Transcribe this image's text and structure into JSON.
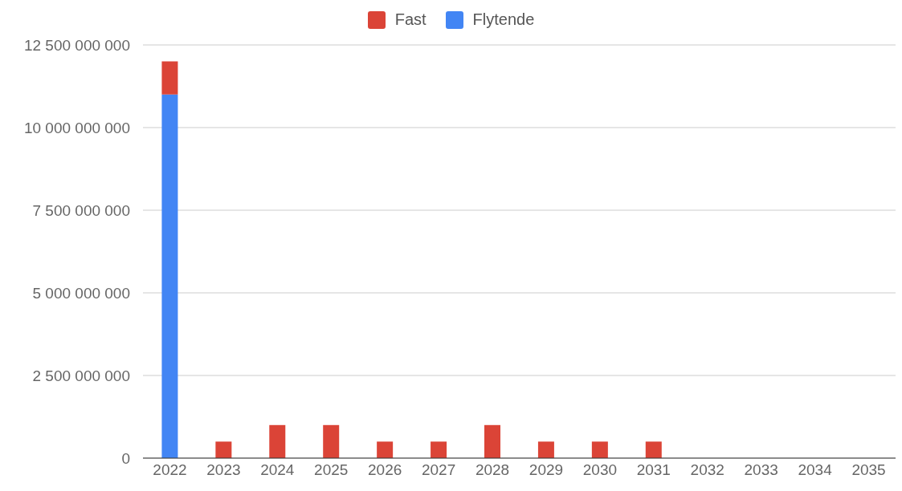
{
  "chart_data": {
    "type": "bar",
    "stacked": true,
    "categories": [
      "2022",
      "2023",
      "2024",
      "2025",
      "2026",
      "2027",
      "2028",
      "2029",
      "2030",
      "2031",
      "2032",
      "2033",
      "2034",
      "2035"
    ],
    "series": [
      {
        "name": "Flytende",
        "color": "#4285f4",
        "values": [
          11000000000,
          0,
          0,
          0,
          0,
          0,
          0,
          0,
          0,
          0,
          0,
          0,
          0,
          0
        ]
      },
      {
        "name": "Fast",
        "color": "#db4437",
        "values": [
          1000000000,
          500000000,
          1000000000,
          1000000000,
          500000000,
          500000000,
          1000000000,
          500000000,
          500000000,
          500000000,
          0,
          0,
          0,
          0
        ]
      }
    ],
    "ylim": [
      0,
      12500000000
    ],
    "yticks": [
      0,
      {
        "value": 2500000000,
        "label": "2 500 000 000"
      },
      {
        "value": 5000000000,
        "label": "5 000 000 000"
      },
      {
        "value": 7500000000,
        "label": "7 500 000 000"
      },
      {
        "value": 10000000000,
        "label": "10 000 000 000"
      },
      {
        "value": 12500000000,
        "label": "12 500 000 000"
      }
    ],
    "grid": "y",
    "legend": "top"
  }
}
